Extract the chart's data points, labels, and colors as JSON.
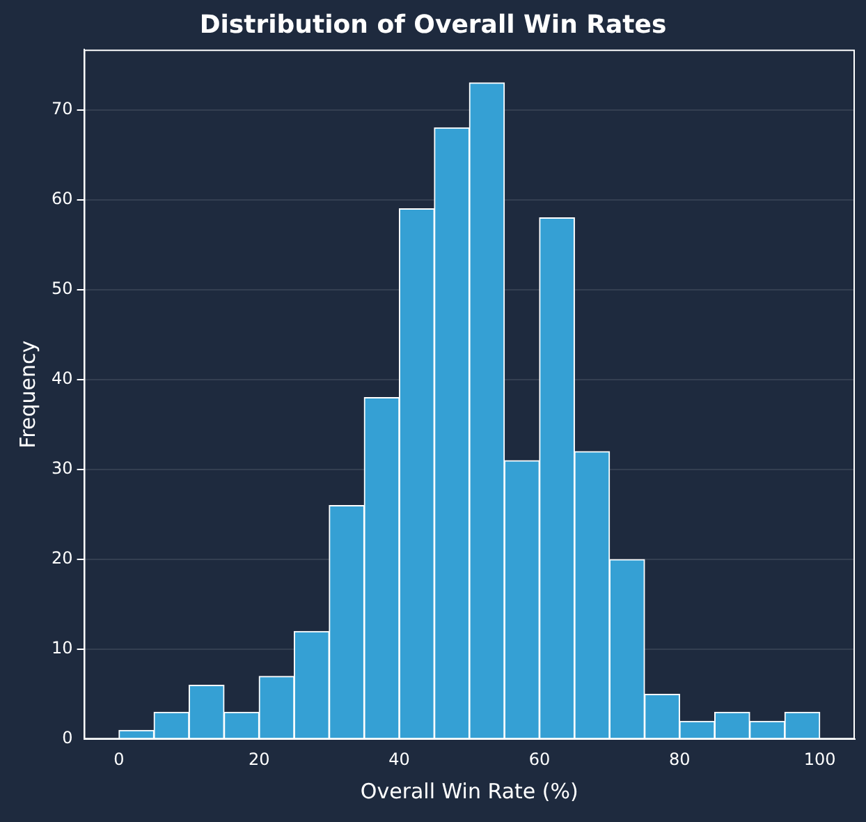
{
  "chart_data": {
    "type": "histogram",
    "title": "Distribution of Overall Win Rates",
    "xlabel": "Overall Win Rate (%)",
    "ylabel": "Frequency",
    "bins": [
      0,
      5,
      10,
      15,
      20,
      25,
      30,
      35,
      40,
      45,
      50,
      55,
      60,
      65,
      70,
      75,
      80,
      85,
      90,
      95,
      100
    ],
    "values": [
      1,
      3,
      6,
      3,
      7,
      12,
      26,
      38,
      59,
      68,
      73,
      31,
      58,
      32,
      20,
      5,
      2,
      3,
      2,
      3
    ],
    "color": "#35a0d4",
    "xlim": [
      -5,
      105
    ],
    "xticks": [
      0,
      20,
      40,
      60,
      80,
      100
    ],
    "ylim": [
      0,
      76.7
    ],
    "yticks": [
      0,
      10,
      20,
      30,
      40,
      50,
      60,
      70
    ],
    "grid": "y"
  }
}
